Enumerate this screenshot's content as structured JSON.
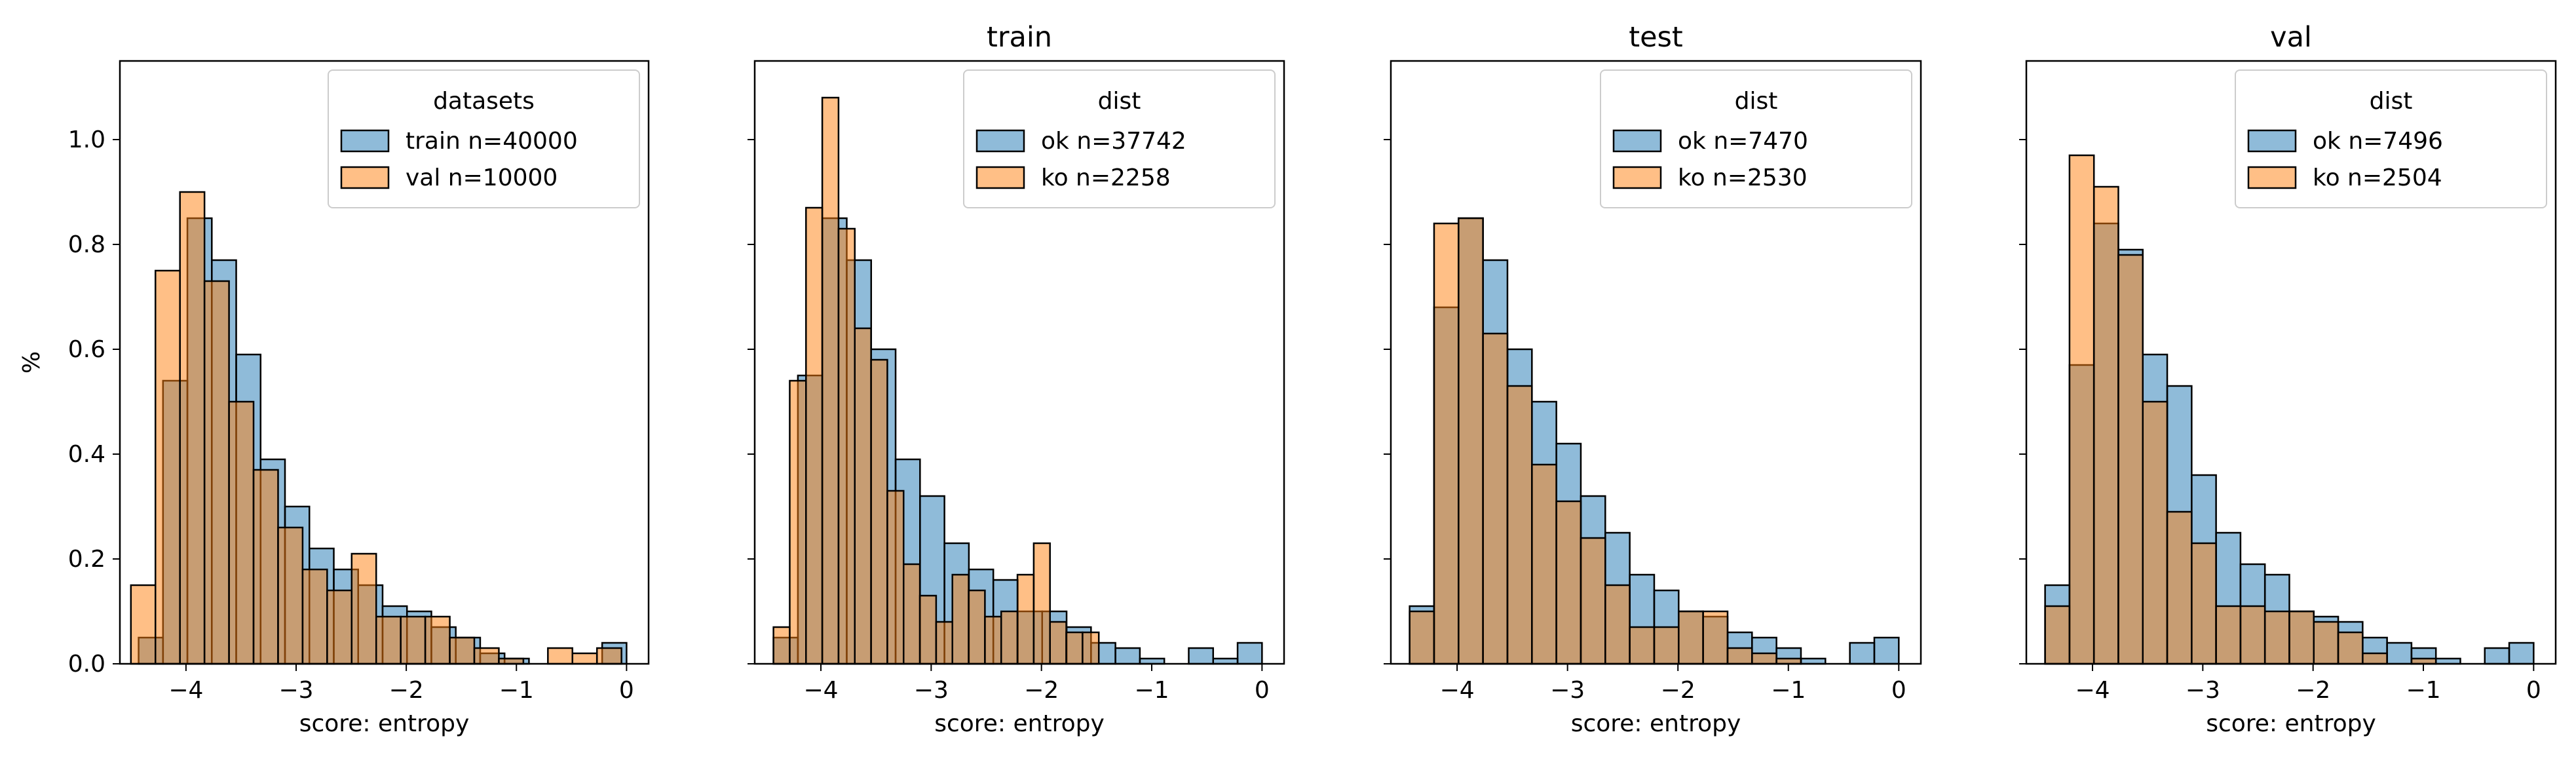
{
  "colors": {
    "series_a": "#1f77b4",
    "series_b": "#ff7f0e",
    "overlap": "#bc8256"
  },
  "chart_data": [
    {
      "type": "histogram",
      "title": "",
      "xlabel": "score: entropy",
      "ylabel": "%",
      "xlim": [
        -4.6,
        0.2
      ],
      "ylim": [
        0,
        1.15
      ],
      "xticks": [
        -4,
        -3,
        -2,
        -1,
        0
      ],
      "xtick_labels": [
        "−4",
        "−3",
        "−2",
        "−1",
        "0"
      ],
      "yticks": [
        0.0,
        0.2,
        0.4,
        0.6,
        0.8,
        1.0
      ],
      "ytick_labels": [
        "0.0",
        "0.2",
        "0.4",
        "0.6",
        "0.8",
        "1.0"
      ],
      "legend": {
        "title": "datasets",
        "position": "top-right",
        "entries": [
          "train n=40000",
          "val n=10000"
        ]
      },
      "series": [
        {
          "name": "train n=40000",
          "bin_start": -4.43,
          "bin_width": 0.2215,
          "values": [
            0.05,
            0.54,
            0.85,
            0.77,
            0.59,
            0.39,
            0.3,
            0.22,
            0.18,
            0.15,
            0.11,
            0.1,
            0.07,
            0.05,
            0.02,
            0.01,
            0.0,
            0.0,
            0.0,
            0.04
          ]
        },
        {
          "name": "val n=10000",
          "bin_start": -4.5,
          "bin_width": 0.2227,
          "values": [
            0.15,
            0.75,
            0.9,
            0.73,
            0.5,
            0.37,
            0.26,
            0.18,
            0.14,
            0.21,
            0.09,
            0.09,
            0.09,
            0.05,
            0.03,
            0.01,
            0.0,
            0.03,
            0.02,
            0.03
          ]
        }
      ]
    },
    {
      "type": "histogram",
      "title": "train",
      "xlabel": "score: entropy",
      "ylabel": "",
      "xlim": [
        -4.6,
        0.2
      ],
      "ylim": [
        0,
        1.15
      ],
      "xticks": [
        -4,
        -3,
        -2,
        -1,
        0
      ],
      "xtick_labels": [
        "−4",
        "−3",
        "−2",
        "−1",
        "0"
      ],
      "yticks": [
        0.0,
        0.2,
        0.4,
        0.6,
        0.8,
        1.0
      ],
      "ytick_labels": [],
      "legend": {
        "title": "dist",
        "position": "top-right",
        "entries": [
          "ok n=37742",
          "ko n=2258"
        ]
      },
      "series": [
        {
          "name": "ok n=37742",
          "bin_start": -4.43,
          "bin_width": 0.2215,
          "values": [
            0.05,
            0.55,
            0.85,
            0.77,
            0.6,
            0.39,
            0.32,
            0.23,
            0.18,
            0.16,
            0.1,
            0.1,
            0.07,
            0.04,
            0.03,
            0.01,
            0.0,
            0.03,
            0.01,
            0.04
          ]
        },
        {
          "name": "ko n=2258",
          "bin_start": -4.43,
          "bin_width": 0.1475,
          "values": [
            0.07,
            0.54,
            0.87,
            1.08,
            0.83,
            0.64,
            0.58,
            0.33,
            0.19,
            0.13,
            0.08,
            0.17,
            0.14,
            0.09,
            0.1,
            0.17,
            0.23,
            0.08,
            0.06,
            0.06
          ]
        }
      ]
    },
    {
      "type": "histogram",
      "title": "test",
      "xlabel": "score: entropy",
      "ylabel": "",
      "xlim": [
        -4.6,
        0.2
      ],
      "ylim": [
        0,
        1.15
      ],
      "xticks": [
        -4,
        -3,
        -2,
        -1,
        0
      ],
      "xtick_labels": [
        "−4",
        "−3",
        "−2",
        "−1",
        "0"
      ],
      "yticks": [
        0.0,
        0.2,
        0.4,
        0.6,
        0.8,
        1.0
      ],
      "ytick_labels": [],
      "legend": {
        "title": "dist",
        "position": "top-right",
        "entries": [
          "ok n=7470",
          "ko n=2530"
        ]
      },
      "series": [
        {
          "name": "ok n=7470",
          "bin_start": -4.43,
          "bin_width": 0.2215,
          "values": [
            0.11,
            0.68,
            0.85,
            0.77,
            0.6,
            0.5,
            0.42,
            0.32,
            0.25,
            0.17,
            0.14,
            0.1,
            0.09,
            0.06,
            0.05,
            0.03,
            0.01,
            0.0,
            0.04,
            0.05
          ]
        },
        {
          "name": "ko n=2530",
          "bin_start": -4.43,
          "bin_width": 0.2215,
          "values": [
            0.1,
            0.84,
            0.85,
            0.63,
            0.53,
            0.38,
            0.31,
            0.24,
            0.15,
            0.07,
            0.07,
            0.1,
            0.1,
            0.03,
            0.02,
            0.01,
            0.0,
            0.0,
            0.0,
            0.0
          ]
        }
      ]
    },
    {
      "type": "histogram",
      "title": "val",
      "xlabel": "score: entropy",
      "ylabel": "",
      "xlim": [
        -4.6,
        0.2
      ],
      "ylim": [
        0,
        1.15
      ],
      "xticks": [
        -4,
        -3,
        -2,
        -1,
        0
      ],
      "xtick_labels": [
        "−4",
        "−3",
        "−2",
        "−1",
        "0"
      ],
      "yticks": [
        0.0,
        0.2,
        0.4,
        0.6,
        0.8,
        1.0
      ],
      "ytick_labels": [],
      "legend": {
        "title": "dist",
        "position": "top-right",
        "entries": [
          "ok n=7496",
          "ko n=2504"
        ]
      },
      "series": [
        {
          "name": "ok n=7496",
          "bin_start": -4.43,
          "bin_width": 0.2215,
          "values": [
            0.15,
            0.57,
            0.84,
            0.79,
            0.59,
            0.53,
            0.36,
            0.25,
            0.19,
            0.17,
            0.1,
            0.09,
            0.08,
            0.05,
            0.04,
            0.03,
            0.01,
            0.0,
            0.03,
            0.04
          ]
        },
        {
          "name": "ko n=2504",
          "bin_start": -4.43,
          "bin_width": 0.2215,
          "values": [
            0.11,
            0.97,
            0.91,
            0.78,
            0.5,
            0.29,
            0.23,
            0.11,
            0.11,
            0.1,
            0.1,
            0.08,
            0.06,
            0.02,
            0.0,
            0.01,
            0.0,
            0.0,
            0.0,
            0.0
          ]
        }
      ]
    }
  ]
}
